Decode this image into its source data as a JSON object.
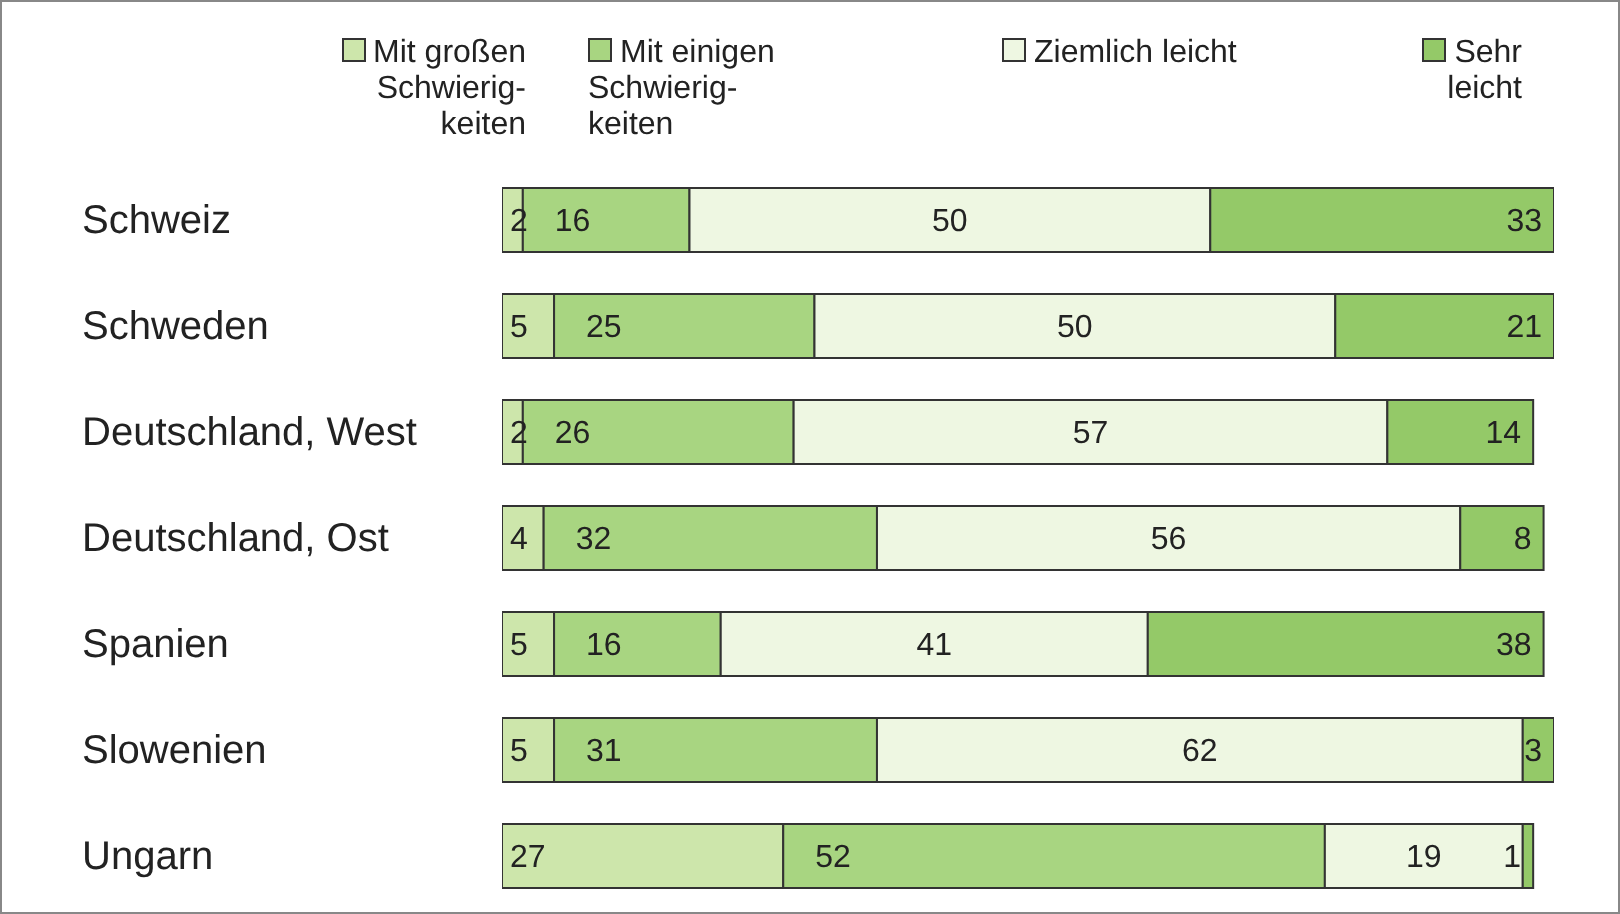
{
  "chart_data": {
    "type": "bar",
    "orientation": "horizontal",
    "stacked": true,
    "data_labels": true,
    "legend": "top",
    "categories": [
      "Schweiz",
      "Schweden",
      "Deutschland, West",
      "Deutschland, Ost",
      "Spanien",
      "Slowenien",
      "Ungarn"
    ],
    "series": [
      {
        "name": "Mit großen Schwierig-keiten",
        "color": "#cde6ab",
        "values": [
          2,
          5,
          2,
          4,
          5,
          5,
          27
        ]
      },
      {
        "name": "Mit einigen Schwierig-keiten",
        "color": "#a8d581",
        "values": [
          16,
          25,
          26,
          32,
          16,
          31,
          52
        ]
      },
      {
        "name": "Ziemlich leicht",
        "color": "#eef7e2",
        "values": [
          50,
          50,
          57,
          56,
          41,
          62,
          19
        ]
      },
      {
        "name": "Sehr leicht",
        "color": "#94c968",
        "values": [
          33,
          21,
          14,
          8,
          38,
          3,
          1
        ]
      }
    ]
  }
}
